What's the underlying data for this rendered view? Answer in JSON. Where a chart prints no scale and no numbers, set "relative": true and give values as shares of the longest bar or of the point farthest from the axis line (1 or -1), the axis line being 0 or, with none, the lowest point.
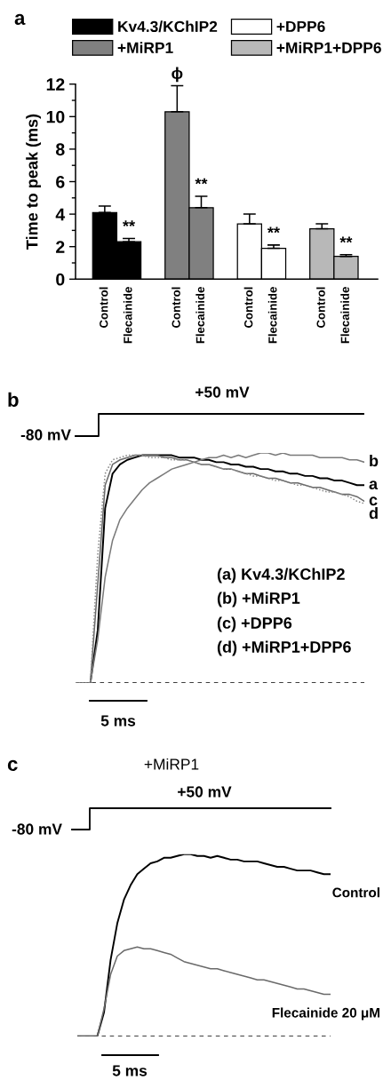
{
  "chart_data": [
    {
      "type": "bar",
      "title": "a",
      "ylabel": "Time to peak (ms)",
      "categories": [
        "Control",
        "Flecainide",
        null,
        "Control",
        "Flecainide",
        null,
        "Control",
        "Flecainide",
        null,
        "Control",
        "Flecainide"
      ],
      "series": [
        {
          "name": "Kv4.3/KChIP2",
          "color": "#000000",
          "values": [
            4.1,
            2.3,
            null,
            null,
            null,
            null,
            null,
            null,
            null,
            null,
            null
          ],
          "errors": [
            [
              4.1,
              4.5
            ],
            [
              2.3,
              2.5
            ],
            null,
            null,
            null,
            null,
            null,
            null,
            null,
            null,
            null
          ],
          "value_labels": [
            null,
            "**",
            null,
            null,
            null,
            null,
            null,
            null,
            null,
            null,
            null
          ]
        },
        {
          "name": "+MiRP1",
          "color": "#808080",
          "values": [
            null,
            null,
            null,
            10.3,
            4.4,
            null,
            null,
            null,
            null,
            null,
            null
          ],
          "errors": [
            null,
            null,
            null,
            [
              10.3,
              11.9
            ],
            [
              4.4,
              5.1
            ],
            null,
            null,
            null,
            null,
            null,
            null
          ],
          "value_labels": [
            null,
            null,
            null,
            "ϕ",
            "**",
            null,
            null,
            null,
            null,
            null,
            null
          ]
        },
        {
          "name": "+DPP6",
          "color": "#ffffff",
          "values": [
            null,
            null,
            null,
            null,
            null,
            null,
            3.4,
            1.9,
            null,
            null,
            null
          ],
          "errors": [
            null,
            null,
            null,
            null,
            null,
            null,
            [
              3.4,
              4.0
            ],
            [
              1.9,
              2.1
            ],
            null,
            null,
            null
          ],
          "value_labels": [
            null,
            null,
            null,
            null,
            null,
            null,
            null,
            "**",
            null,
            null,
            null
          ]
        },
        {
          "name": "+MiRP1+DPP6",
          "color": "#b8b8b8",
          "values": [
            null,
            null,
            null,
            null,
            null,
            null,
            null,
            null,
            null,
            3.1,
            1.4
          ],
          "errors": [
            null,
            null,
            null,
            null,
            null,
            null,
            null,
            null,
            null,
            [
              3.1,
              3.4
            ],
            [
              1.4,
              1.5
            ]
          ],
          "value_labels": [
            null,
            null,
            null,
            null,
            null,
            null,
            null,
            null,
            null,
            null,
            "**"
          ]
        }
      ],
      "ylim": [
        0,
        12
      ],
      "yticks": [
        0,
        2,
        4,
        6,
        8,
        10,
        12
      ],
      "legend": "top",
      "grid": false
    },
    {
      "type": "line",
      "title": "b",
      "relative": true,
      "annotations": [
        "+50 mV",
        "-80 mV",
        "5 ms",
        "(a) Kv4.3/KChIP2",
        "(b) +MiRP1",
        "(c) +DPP6",
        "(d) +MiRP1+DPP6"
      ],
      "categories": [
        null,
        null,
        null,
        null,
        null,
        null,
        null,
        null,
        null,
        null,
        null,
        null,
        null,
        null,
        null,
        null,
        null,
        null,
        null,
        null,
        null,
        null,
        null,
        null,
        null,
        null,
        null,
        null,
        null,
        null,
        null,
        null,
        null,
        null,
        null,
        null,
        null,
        null,
        null,
        null
      ],
      "series": [
        {
          "name": "a",
          "color": "#000000",
          "values": [
            0,
            0,
            0,
            0.23,
            0.76,
            0.91,
            0.95,
            0.97,
            0.98,
            0.99,
            0.99,
            0.99,
            0.99,
            0.99,
            0.98,
            0.98,
            0.98,
            0.97,
            0.97,
            0.96,
            0.96,
            0.95,
            0.95,
            0.94,
            0.94,
            0.93,
            0.93,
            0.92,
            0.92,
            0.91,
            0.91,
            0.9,
            0.9,
            0.89,
            0.89,
            0.88,
            0.88,
            0.87,
            0.86,
            0.86
          ]
        },
        {
          "name": "b",
          "color": "#7a7a7a",
          "values": [
            0,
            0,
            0,
            0.19,
            0.46,
            0.62,
            0.71,
            0.76,
            0.8,
            0.84,
            0.87,
            0.89,
            0.91,
            0.93,
            0.94,
            0.95,
            0.96,
            0.97,
            0.98,
            0.98,
            0.99,
            0.98,
            0.99,
            0.98,
            0.99,
            1.0,
            1.0,
            0.99,
            1.0,
            0.99,
            0.99,
            0.99,
            0.99,
            0.98,
            0.98,
            0.98,
            0.98,
            0.97,
            0.97,
            0.96
          ]
        },
        {
          "name": "c",
          "color": "#6a6a6a",
          "values": [
            0,
            0,
            0,
            0.43,
            0.86,
            0.95,
            0.97,
            0.98,
            0.99,
            0.99,
            0.99,
            0.99,
            0.98,
            0.98,
            0.97,
            0.97,
            0.96,
            0.95,
            0.95,
            0.94,
            0.93,
            0.93,
            0.92,
            0.91,
            0.91,
            0.9,
            0.89,
            0.89,
            0.88,
            0.87,
            0.87,
            0.86,
            0.85,
            0.85,
            0.84,
            0.83,
            0.82,
            0.82,
            0.81,
            0.79
          ]
        },
        {
          "name": "d",
          "color": "#8a8a8a",
          "line_style": "dotted",
          "values": [
            0,
            0,
            0,
            0.56,
            0.91,
            0.97,
            0.98,
            0.99,
            0.99,
            0.99,
            0.98,
            0.98,
            0.98,
            0.97,
            0.97,
            0.97,
            0.96,
            0.95,
            0.95,
            0.94,
            0.93,
            0.93,
            0.92,
            0.91,
            0.9,
            0.9,
            0.89,
            0.88,
            0.88,
            0.87,
            0.86,
            0.86,
            0.85,
            0.84,
            0.83,
            0.83,
            0.82,
            0.81,
            0.79,
            0.78
          ]
        }
      ],
      "ref_lines": [
        {
          "axis": "y",
          "value": 0,
          "line_style": "dashed",
          "color": "#000000"
        }
      ]
    },
    {
      "type": "line",
      "title": "c",
      "subtitle": "+MiRP1",
      "relative": true,
      "annotations": [
        "+50 mV",
        "-80 mV",
        "5 ms"
      ],
      "categories": [
        null,
        null,
        null,
        null,
        null,
        null,
        null,
        null,
        null,
        null,
        null,
        null,
        null,
        null,
        null,
        null,
        null,
        null,
        null,
        null,
        null,
        null,
        null,
        null,
        null,
        null,
        null,
        null,
        null,
        null,
        null,
        null,
        null,
        null,
        null,
        null,
        null,
        null,
        null
      ],
      "series": [
        {
          "name": "Control",
          "color": "#000000",
          "values": [
            0,
            0,
            0,
            0,
            0.13,
            0.42,
            0.62,
            0.75,
            0.83,
            0.89,
            0.92,
            0.95,
            0.96,
            0.98,
            0.98,
            0.99,
            1.0,
            1.0,
            0.99,
            0.99,
            0.98,
            0.99,
            0.98,
            0.97,
            0.97,
            0.96,
            0.96,
            0.96,
            0.95,
            0.94,
            0.93,
            0.93,
            0.92,
            0.91,
            0.91,
            0.91,
            0.9,
            0.89,
            0.89
          ]
        },
        {
          "name": "Flecainide 20 μM",
          "color": "#6a6a6a",
          "values": [
            0,
            0,
            0,
            0,
            0.15,
            0.34,
            0.44,
            0.47,
            0.48,
            0.49,
            0.48,
            0.48,
            0.47,
            0.46,
            0.45,
            0.43,
            0.41,
            0.4,
            0.39,
            0.38,
            0.37,
            0.37,
            0.36,
            0.35,
            0.34,
            0.33,
            0.32,
            0.31,
            0.31,
            0.3,
            0.29,
            0.28,
            0.27,
            0.26,
            0.26,
            0.25,
            0.24,
            0.23,
            0.23
          ]
        }
      ],
      "ref_lines": [
        {
          "axis": "y",
          "value": 0,
          "line_style": "dashed",
          "color": "#000000"
        }
      ]
    }
  ]
}
